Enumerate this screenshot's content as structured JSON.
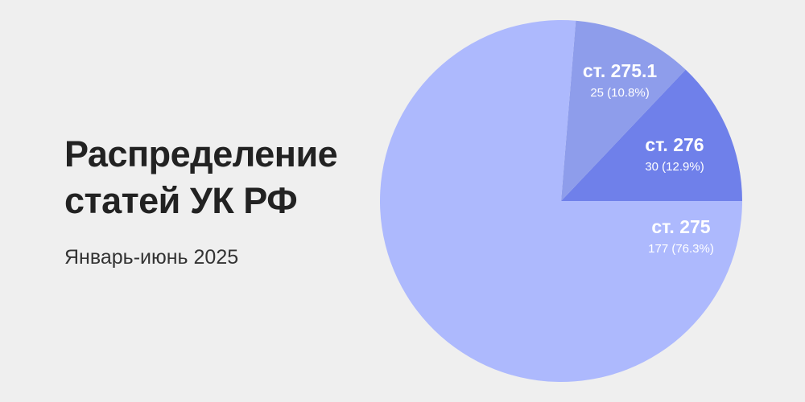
{
  "chart_data": {
    "type": "pie",
    "title": "Распределение статей УК РФ",
    "subtitle": "Январь-июнь 2025",
    "slices": [
      {
        "label": "ст. 276",
        "value": 30,
        "percent": 12.9,
        "value_text": "30 (12.9%)",
        "color": "#6f80ea"
      },
      {
        "label": "ст. 275.1",
        "value": 25,
        "percent": 10.8,
        "value_text": "25 (10.8%)",
        "color": "#8e9deb"
      },
      {
        "label": "ст. 275",
        "value": 177,
        "percent": 76.3,
        "value_text": "177 (76.3%)",
        "color": "#adb9fd"
      }
    ],
    "start_angle": "3 o'clock, counterclockwise",
    "legend": "none"
  }
}
